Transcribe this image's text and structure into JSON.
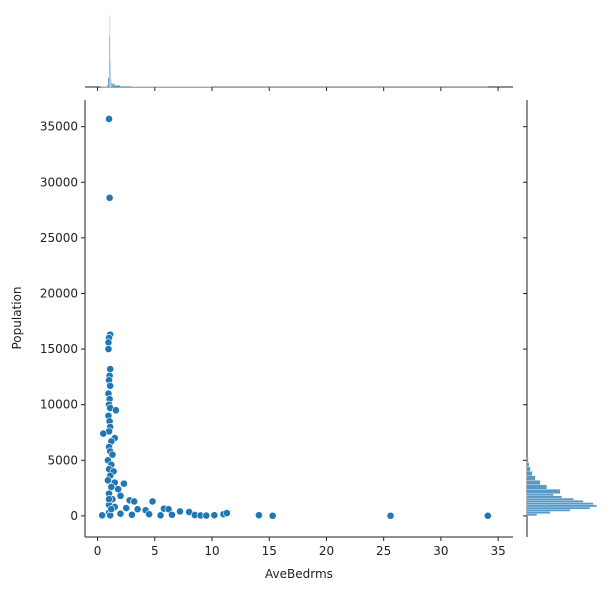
{
  "chart_data": [
    {
      "type": "scatter",
      "xlabel": "AveBedrms",
      "ylabel": "Population",
      "color": "#1f77b4",
      "x": [
        1.0,
        1.05,
        1.1,
        1.0,
        0.95,
        0.95,
        1.1,
        1.05,
        1.0,
        1.1,
        0.95,
        1.05,
        1.0,
        1.1,
        1.6,
        0.95,
        1.05,
        1.1,
        1.0,
        0.5,
        1.5,
        1.2,
        1.0,
        1.1,
        1.3,
        0.9,
        1.2,
        1.0,
        1.4,
        1.1,
        0.9,
        1.5,
        2.3,
        1.2,
        1.8,
        1.0,
        2.0,
        1.3,
        2.8,
        3.2,
        4.8,
        1.0,
        1.5,
        2.5,
        3.5,
        5.8,
        6.2,
        4.2,
        7.2,
        8.0,
        1.0,
        2.0,
        0.4,
        3.0,
        4.5,
        5.5,
        6.5,
        8.5,
        9.0,
        9.5,
        10.2,
        11.0,
        11.3,
        14.1,
        15.3,
        25.6,
        34.1,
        1.1,
        1.2,
        1.0
      ],
      "y": [
        35700,
        28600,
        16300,
        16000,
        15600,
        15000,
        13200,
        12600,
        12200,
        11700,
        11000,
        10500,
        10000,
        9700,
        9500,
        9000,
        8500,
        8000,
        7600,
        7400,
        7000,
        6700,
        6200,
        5800,
        5500,
        5000,
        4600,
        4200,
        4000,
        3600,
        3200,
        3000,
        2900,
        2600,
        2400,
        2000,
        1800,
        1500,
        1400,
        1300,
        1300,
        1000,
        800,
        700,
        600,
        650,
        600,
        500,
        400,
        350,
        300,
        200,
        50,
        100,
        150,
        50,
        100,
        80,
        40,
        30,
        60,
        150,
        250,
        60,
        10,
        10,
        10,
        50,
        600,
        1500
      ],
      "xlim": [
        -1.1,
        36.3
      ],
      "ylim": [
        -1900,
        37400
      ],
      "xticks": [
        0,
        5,
        10,
        15,
        20,
        25,
        30,
        35
      ],
      "yticks": [
        0,
        5000,
        10000,
        15000,
        20000,
        25000,
        30000,
        35000
      ]
    },
    {
      "type": "histogram",
      "orientation": "vertical",
      "color": "#1f77b4",
      "bins": [
        0.33,
        0.6,
        0.8,
        0.9,
        1.0,
        1.05,
        1.1,
        1.15,
        1.2,
        1.3,
        1.5,
        2,
        3,
        5,
        10,
        34.07
      ],
      "counts": [
        10,
        30,
        200,
        900,
        5000,
        7000,
        2500,
        800,
        400,
        300,
        150,
        60,
        30,
        15,
        5
      ],
      "ylim": [
        0,
        7300
      ]
    },
    {
      "type": "histogram",
      "orientation": "horizontal",
      "color": "#1f77b4",
      "bins": [
        0,
        200,
        400,
        600,
        800,
        1000,
        1200,
        1400,
        1600,
        1800,
        2000,
        2400,
        2800,
        3200,
        3600,
        4000,
        4400,
        4800,
        5200
      ],
      "counts": [
        300,
        700,
        1300,
        1900,
        2100,
        2000,
        1700,
        1400,
        1050,
        800,
        1000,
        600,
        400,
        250,
        160,
        100,
        60,
        40
      ],
      "xlim": [
        0,
        2200
      ]
    }
  ]
}
